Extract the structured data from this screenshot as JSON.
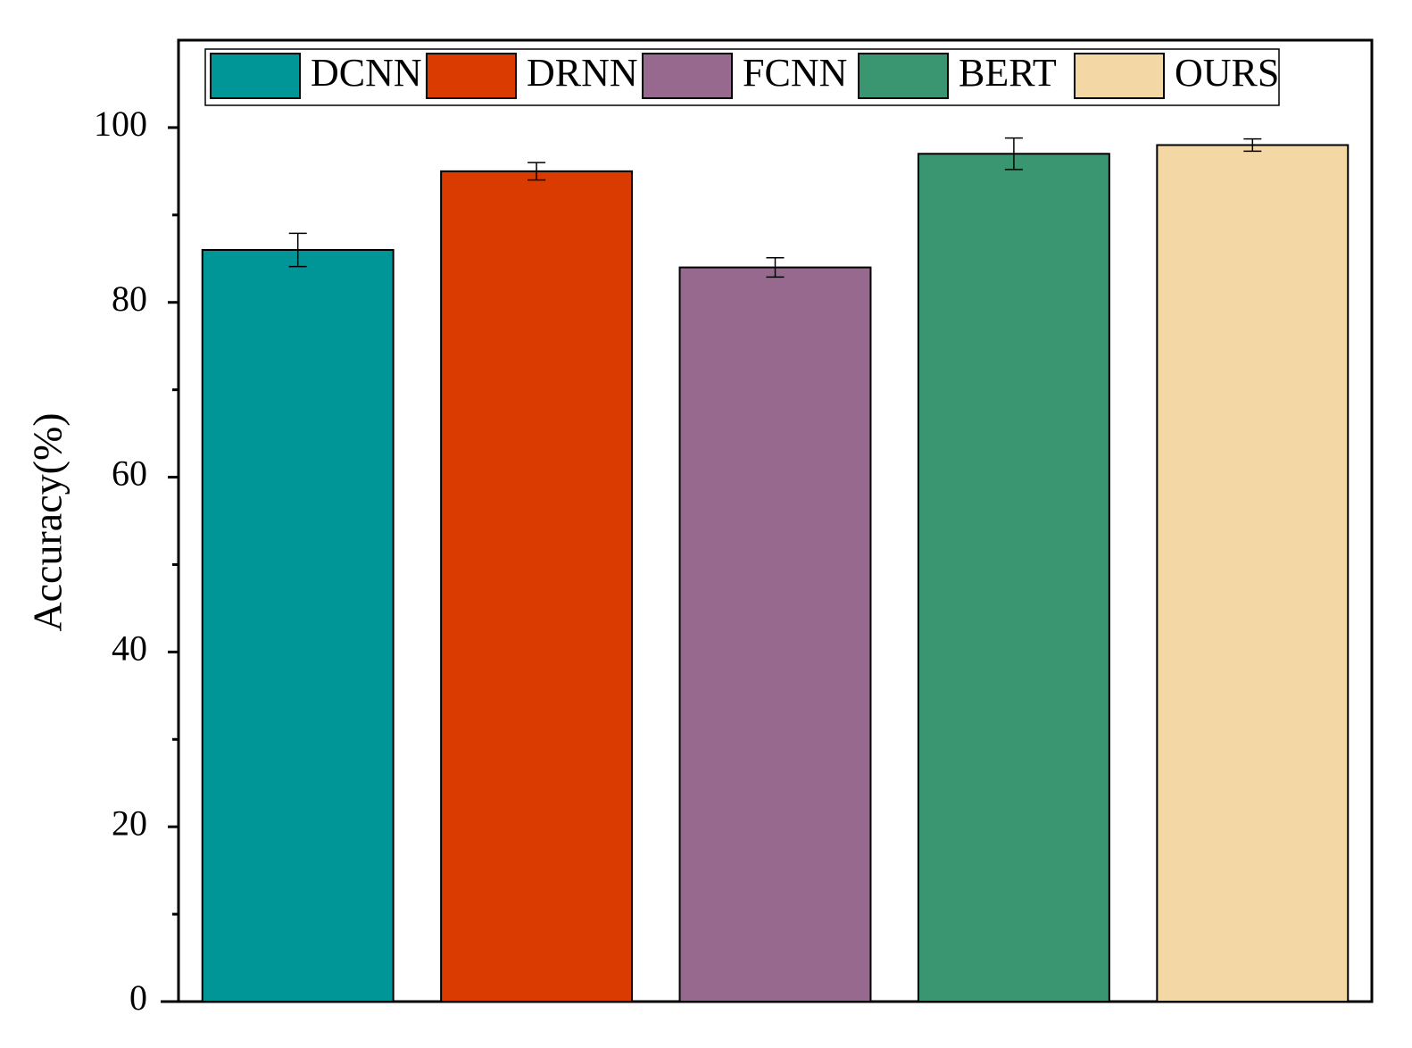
{
  "chart_data": {
    "type": "bar",
    "y_label": "Accuracy(%)",
    "series": [
      {
        "name": "DCNN",
        "color": "#009596",
        "values": [
          86
        ],
        "errors": [
          1.9
        ]
      },
      {
        "name": "DRNN",
        "color": "#d93b00",
        "values": [
          95
        ],
        "errors": [
          1
        ]
      },
      {
        "name": "FCNN",
        "color": "#98698e",
        "values": [
          84
        ],
        "errors": [
          1.1
        ]
      },
      {
        "name": "BERT",
        "color": "#3a9670",
        "values": [
          97
        ],
        "errors": [
          1.8
        ]
      },
      {
        "name": "OURS",
        "color": "#f3d7a4",
        "values": [
          98
        ],
        "errors": [
          0.7
        ]
      }
    ],
    "ylim": [
      0,
      110
    ],
    "yticks": [
      0,
      20,
      40,
      60,
      80,
      100
    ],
    "yminorticks": [
      10,
      30,
      50,
      70,
      90
    ],
    "legend": "top"
  }
}
